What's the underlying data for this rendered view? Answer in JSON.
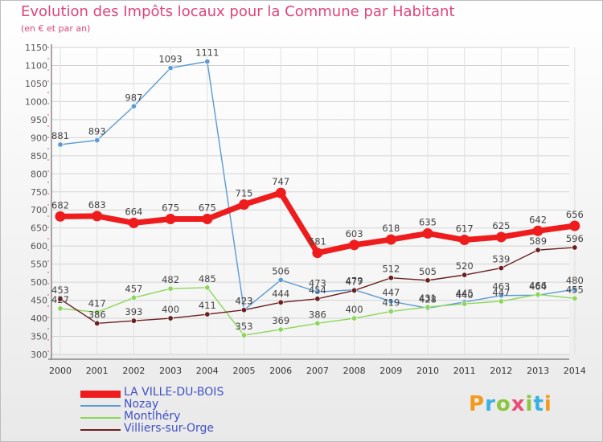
{
  "header": {
    "title": "Evolution des Impôts locaux pour la Commune par Habitant",
    "subtitle": "(en € et par an)"
  },
  "logo": {
    "text": "Proxiti",
    "colors": [
      "#f29a1d",
      "#3bb0e3",
      "#8cc63f",
      "#e94e77",
      "#8cc63f",
      "#3bb0e3",
      "#f29a1d"
    ]
  },
  "chart_data": {
    "type": "line",
    "title": "Evolution des Impôts locaux pour la Commune par Habitant",
    "subtitle": "(en € et par an)",
    "xlabel": "",
    "ylabel": "",
    "x": [
      2000,
      2001,
      2002,
      2003,
      2004,
      2005,
      2006,
      2007,
      2008,
      2009,
      2010,
      2011,
      2012,
      2013,
      2014
    ],
    "ylim": [
      300,
      1150
    ],
    "yticks": [
      300,
      350,
      400,
      450,
      500,
      550,
      600,
      650,
      700,
      750,
      800,
      850,
      900,
      950,
      1000,
      1050,
      1100,
      1150
    ],
    "grid": true,
    "legend_position": "bottom-left",
    "series": [
      {
        "name": "LA VILLE-DU-BOIS",
        "color": "#ee1c1c",
        "values": [
          682,
          683,
          664,
          675,
          675,
          715,
          747,
          581,
          603,
          618,
          635,
          617,
          625,
          642,
          656
        ]
      },
      {
        "name": "Nozay",
        "color": "#5b9bd5",
        "values": [
          881,
          893,
          987,
          1093,
          1111,
          423,
          506,
          473,
          479,
          447,
          428,
          445,
          463,
          464,
          480
        ]
      },
      {
        "name": "Montlhéry",
        "color": "#8cd65a",
        "values": [
          427,
          417,
          457,
          482,
          485,
          353,
          369,
          386,
          400,
          419,
          431,
          440,
          447,
          466,
          455
        ]
      },
      {
        "name": "Villiers-sur-Orge",
        "color": "#6b1f1f",
        "values": [
          453,
          386,
          393,
          400,
          411,
          423,
          444,
          454,
          477,
          512,
          505,
          520,
          539,
          589,
          596
        ]
      }
    ]
  }
}
